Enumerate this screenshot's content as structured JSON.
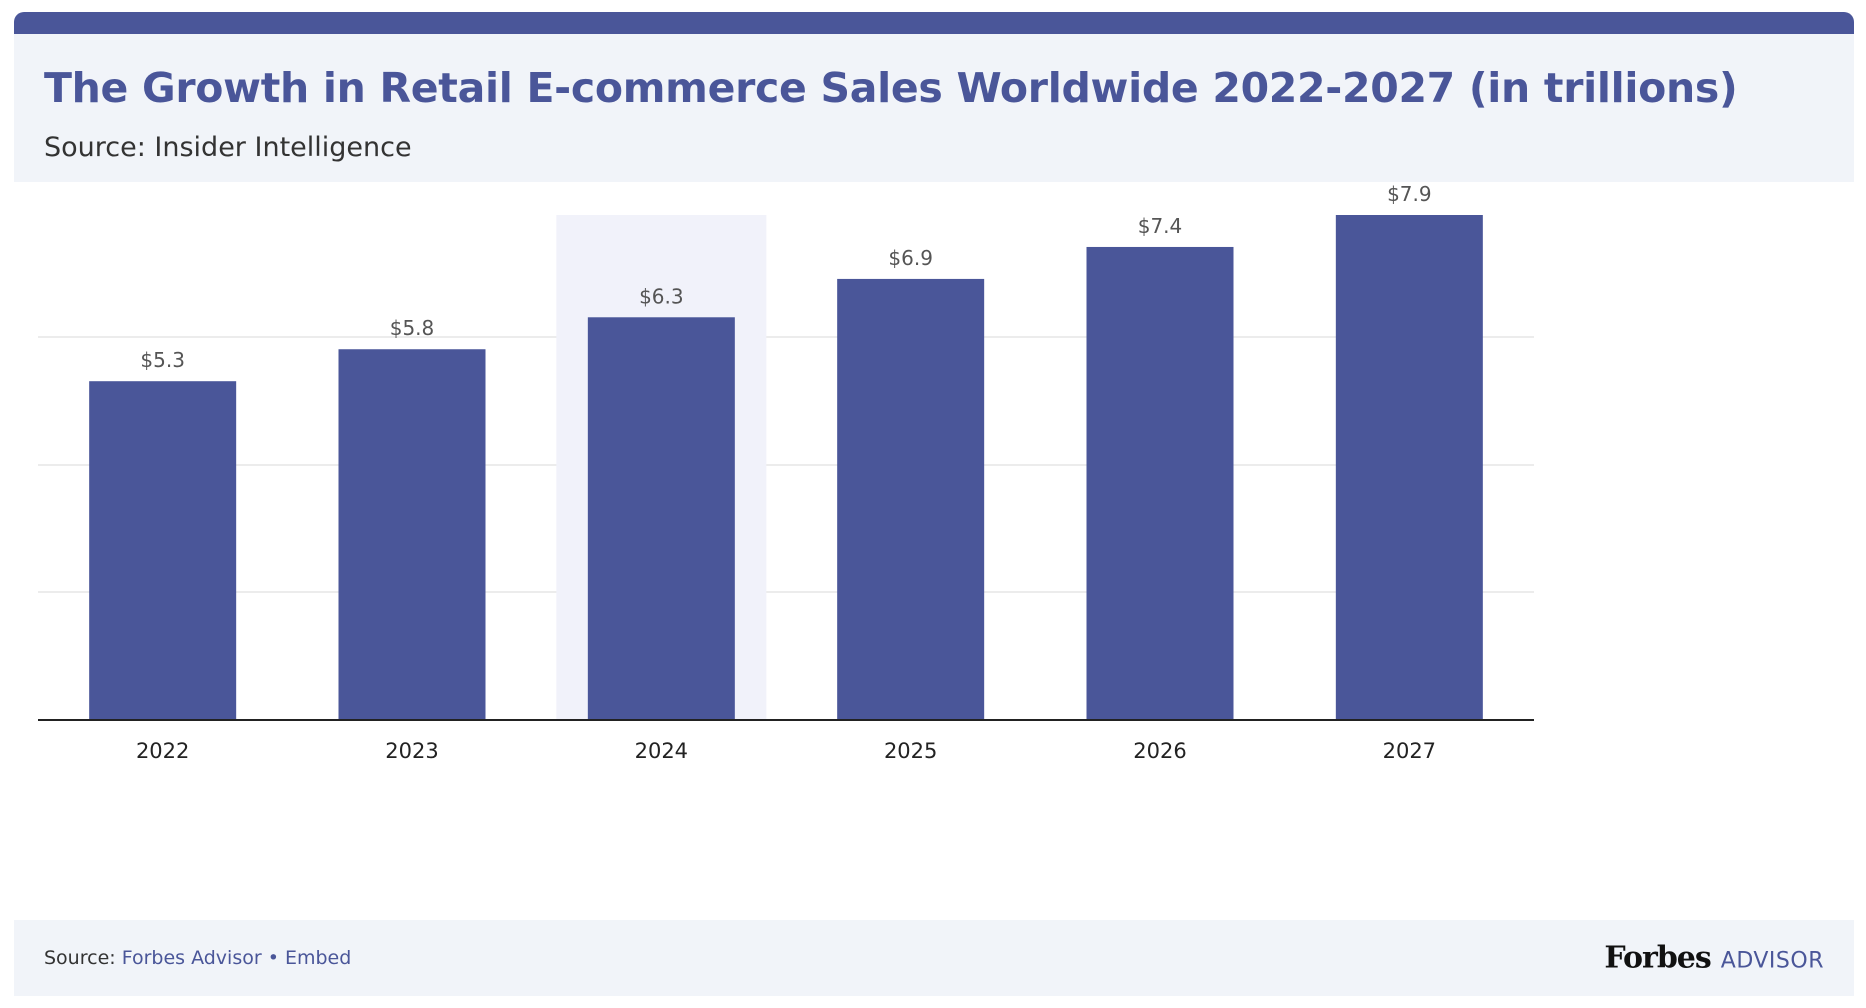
{
  "header": {
    "title": "The Growth in Retail E-commerce Sales Worldwide 2022-2027 (in trillions)",
    "subtitle": "Source: Insider Intelligence"
  },
  "footer": {
    "source_label": "Source: ",
    "source_link": "Forbes Advisor",
    "separator": " • ",
    "embed_link": "Embed",
    "brand_forbes": "Forbes",
    "brand_advisor": "ADVISOR"
  },
  "colors": {
    "bar": "#4a5699",
    "highlight_band": "#f1f2fa",
    "gridline": "#e6e6e6",
    "axis": "#222222",
    "header_bg": "#f1f4f9"
  },
  "chart_data": {
    "type": "bar",
    "title": "The Growth in Retail E-commerce Sales Worldwide 2022-2027 (in trillions)",
    "xlabel": "",
    "ylabel": "",
    "categories": [
      "2022",
      "2023",
      "2024",
      "2025",
      "2026",
      "2027"
    ],
    "values": [
      5.3,
      5.8,
      6.3,
      6.9,
      7.4,
      7.9
    ],
    "value_labels": [
      "$5.3",
      "$5.8",
      "$6.3",
      "$6.9",
      "$7.4",
      "$7.9"
    ],
    "highlighted_category": "2024",
    "ylim": [
      0,
      7.9
    ],
    "grid": true,
    "legend": "none"
  }
}
